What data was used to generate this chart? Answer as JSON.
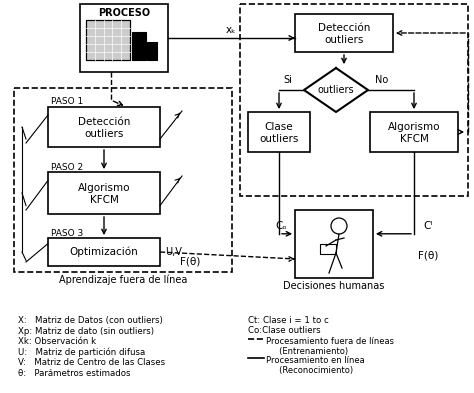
{
  "bg_color": "#ffffff",
  "fig_w": 4.74,
  "fig_h": 3.93,
  "legend_left": [
    "X:   Matriz de Datos (con outliers)",
    "Xp: Matriz de dato (sin outliers)",
    "Xk: Observación k",
    "U:   Matriz de partición difusa",
    "V:   Matriz de Centro de las Clases",
    "θ:   Parámetros estimados"
  ],
  "legend_right_lines": [
    "Ct: Clase i = 1 to c",
    "Co:Clase outliers"
  ],
  "legend_dashed": "Procesamiento fuera de líneas\n     (Entrenamiento)",
  "legend_solid": "Procesamiento en línea\n     (Reconocimiento)"
}
